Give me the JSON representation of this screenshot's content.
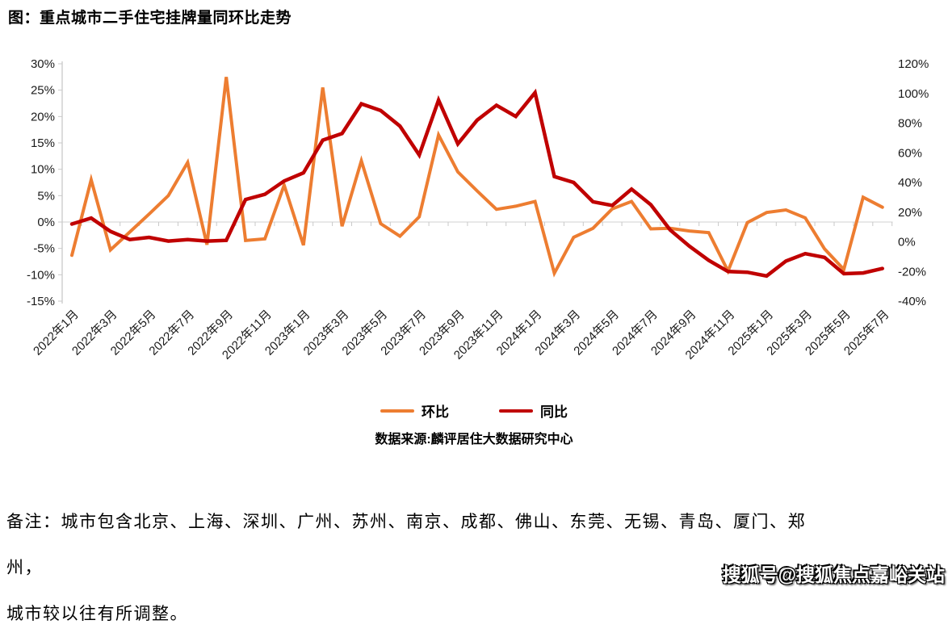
{
  "page": {
    "title": "图：重点城市二手住宅挂牌量同环比走势",
    "source": "数据来源:麟评居住大数据研究中心",
    "note_line1": "备注：城市包含北京、上海、深圳、广州、苏州、南京、成都、佛山、东莞、无锡、青岛、厦门、郑州，",
    "note_line2": "城市较以往有所调整。",
    "watermark": "搜狐号@搜狐焦点嘉峪关站"
  },
  "chart_data": {
    "type": "line",
    "title": "图：重点城市二手住宅挂牌量同环比走势",
    "grid": false,
    "legend_position": "bottom",
    "x": [
      "2022年1月",
      "2022年2月",
      "2022年3月",
      "2022年4月",
      "2022年5月",
      "2022年6月",
      "2022年7月",
      "2022年8月",
      "2022年9月",
      "2022年10月",
      "2022年11月",
      "2022年12月",
      "2023年1月",
      "2023年2月",
      "2023年3月",
      "2023年4月",
      "2023年5月",
      "2023年6月",
      "2023年7月",
      "2023年8月",
      "2023年9月",
      "2023年10月",
      "2023年11月",
      "2023年12月",
      "2024年1月",
      "2024年2月",
      "2024年3月",
      "2024年4月",
      "2024年5月",
      "2024年6月",
      "2024年7月",
      "2024年8月",
      "2024年9月",
      "2024年10月",
      "2024年11月",
      "2024年12月",
      "2025年1月",
      "2025年2月",
      "2025年3月",
      "2025年4月",
      "2025年5月",
      "2025年6月",
      "2025年7月"
    ],
    "x_tick_step": 2,
    "series": [
      {
        "name": "环比",
        "axis": "left",
        "color": "#ED7D31",
        "values": [
          -6.3,
          8.0,
          -5.3,
          -1.9,
          1.5,
          5.0,
          11.3,
          -4.3,
          27.5,
          -3.5,
          -3.2,
          7.0,
          -4.4,
          25.5,
          -0.8,
          11.6,
          -0.3,
          -2.7,
          1.0,
          16.5,
          9.5,
          5.9,
          2.4,
          3.0,
          3.9,
          -9.7,
          -2.9,
          -1.2,
          2.5,
          3.9,
          -1.3,
          -1.2,
          -1.7,
          -2.0,
          -9.3,
          -0.1,
          1.8,
          2.3,
          0.8,
          -5.1,
          -9.0,
          4.7,
          2.8
        ]
      },
      {
        "name": "同比",
        "axis": "right",
        "color": "#C00000",
        "values": [
          12,
          16,
          7,
          1.5,
          3,
          0.5,
          1.5,
          0.5,
          1,
          28.5,
          32,
          41,
          46.5,
          68.5,
          73,
          93,
          88.5,
          78,
          58.5,
          95.5,
          66,
          82,
          92,
          84.5,
          100.5,
          44,
          40,
          27,
          24.5,
          35.5,
          25,
          8,
          -3,
          -12.5,
          -20,
          -20.5,
          -23,
          -13,
          -8,
          -10.5,
          -21.5,
          -21,
          -18
        ]
      }
    ],
    "left_axis": {
      "min": -15,
      "max": 30,
      "step": 5,
      "tick_labels": [
        "30%",
        "25%",
        "20%",
        "15%",
        "10%",
        "5%",
        "0%",
        "-5%",
        "-10%",
        "-15%"
      ]
    },
    "right_axis": {
      "min": -40,
      "max": 120,
      "step": 20,
      "tick_labels": [
        "120%",
        "100%",
        "80%",
        "60%",
        "40%",
        "20%",
        "0%",
        "-20%",
        "-40%"
      ]
    },
    "axis_color": "#c9c9c9",
    "zero_line_color": "#d9d9d9",
    "label_color": "#1a1a1a"
  }
}
